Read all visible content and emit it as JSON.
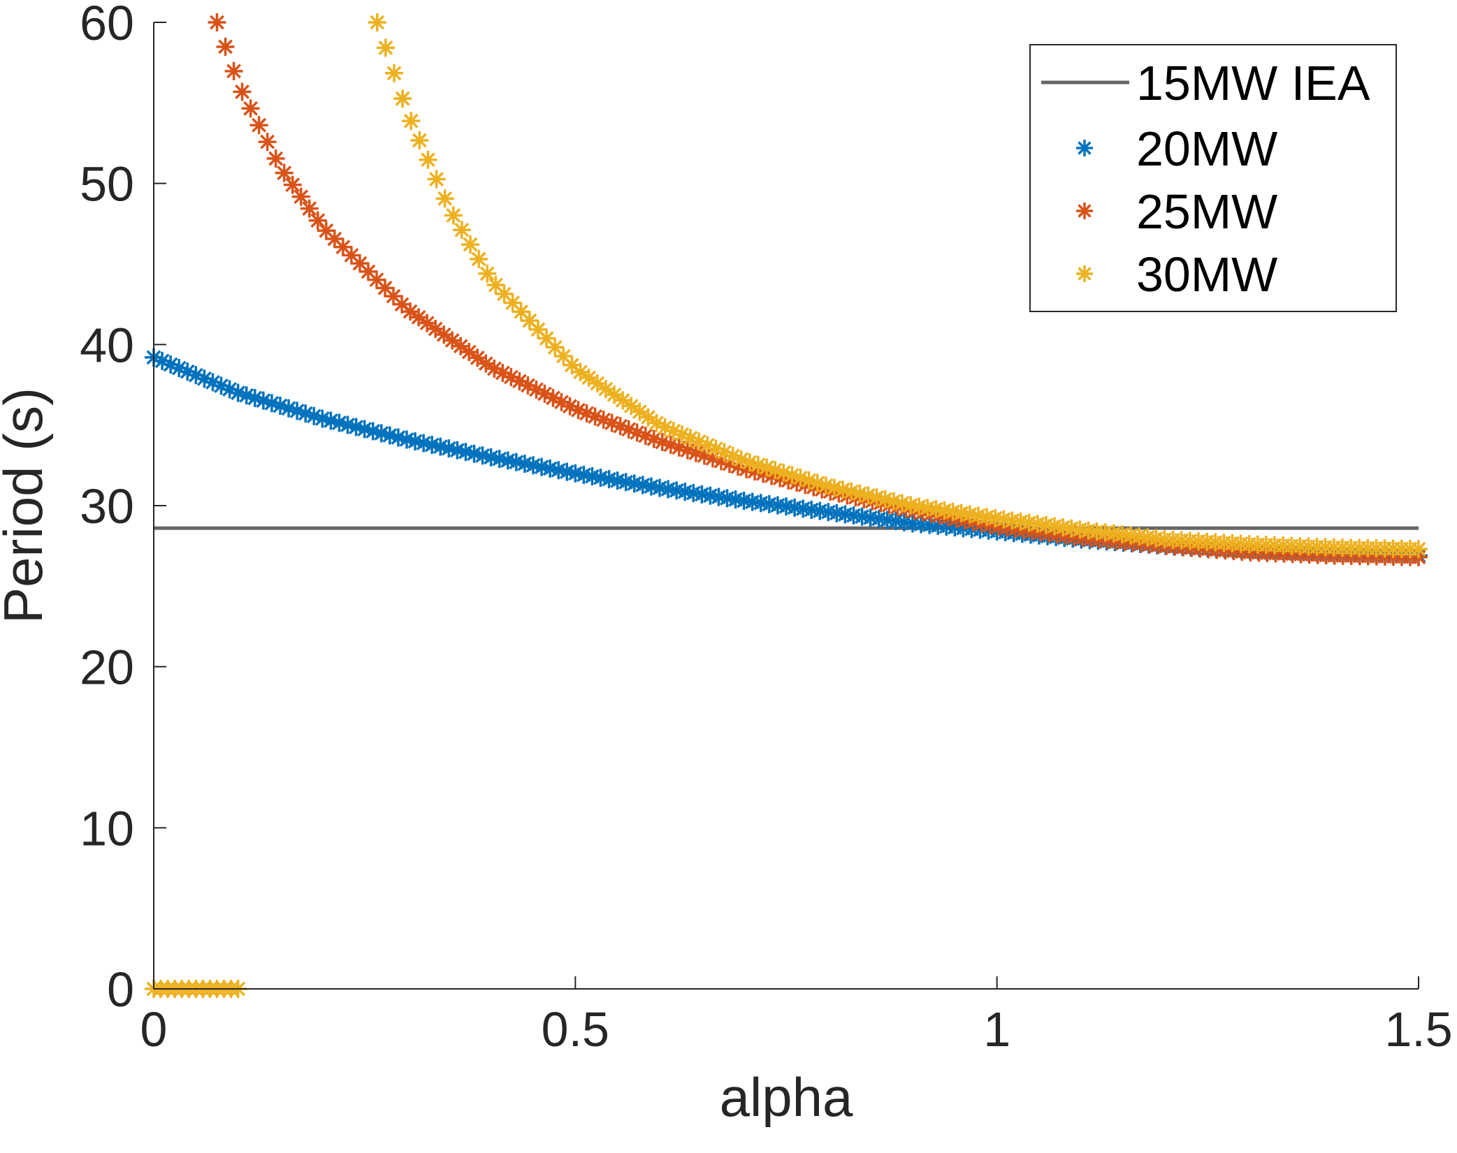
{
  "chart_data": {
    "type": "scatter",
    "title": "",
    "xlabel": "alpha",
    "ylabel": "Period (s)",
    "xlim": [
      0,
      1.5
    ],
    "ylim": [
      0,
      60
    ],
    "xticks": [
      0,
      0.5,
      1,
      1.5
    ],
    "xtick_labels": [
      "0",
      "0.5",
      "1",
      "1.5"
    ],
    "yticks": [
      0,
      10,
      20,
      30,
      40,
      50,
      60
    ],
    "ytick_labels": [
      "0",
      "10",
      "20",
      "30",
      "40",
      "50",
      "60"
    ],
    "grid": false,
    "legend_position": "top-right",
    "reference_line": {
      "name": "15MW IEA",
      "y": 28.6,
      "color": "#666666"
    },
    "series": [
      {
        "name": "20MW",
        "color": "#0072BD",
        "marker": "asterisk",
        "points": [
          [
            0,
            39.2
          ],
          [
            0.1,
            37.0
          ],
          [
            0.2,
            35.4
          ],
          [
            0.3,
            34.1
          ],
          [
            0.4,
            33.0
          ],
          [
            0.5,
            32.0
          ],
          [
            0.6,
            31.1
          ],
          [
            0.7,
            30.3
          ],
          [
            0.8,
            29.6
          ],
          [
            0.9,
            28.9
          ],
          [
            1.0,
            28.4
          ],
          [
            1.1,
            27.9
          ],
          [
            1.2,
            27.5
          ],
          [
            1.3,
            27.2
          ],
          [
            1.4,
            27.0
          ],
          [
            1.5,
            26.9
          ]
        ]
      },
      {
        "name": "25MW",
        "color": "#D95319",
        "marker": "asterisk",
        "points": [
          [
            0.075,
            60.0
          ],
          [
            0.1,
            56.2
          ],
          [
            0.15,
            51.0
          ],
          [
            0.2,
            47.3
          ],
          [
            0.3,
            42.2
          ],
          [
            0.4,
            38.6
          ],
          [
            0.5,
            36.0
          ],
          [
            0.6,
            34.0
          ],
          [
            0.7,
            32.3
          ],
          [
            0.8,
            30.9
          ],
          [
            0.9,
            29.7
          ],
          [
            1.0,
            28.7
          ],
          [
            1.1,
            28.0
          ],
          [
            1.2,
            27.5
          ],
          [
            1.3,
            27.1
          ],
          [
            1.4,
            26.9
          ],
          [
            1.5,
            26.8
          ]
        ]
      },
      {
        "name": "30MW",
        "color": "#EDB120",
        "marker": "asterisk",
        "points": [
          [
            0.265,
            60.0
          ],
          [
            0.3,
            54.5
          ],
          [
            0.35,
            48.5
          ],
          [
            0.4,
            44.0
          ],
          [
            0.5,
            38.5
          ],
          [
            0.6,
            35.0
          ],
          [
            0.7,
            32.8
          ],
          [
            0.8,
            31.2
          ],
          [
            0.9,
            30.0
          ],
          [
            1.0,
            29.2
          ],
          [
            1.1,
            28.5
          ],
          [
            1.2,
            27.9
          ],
          [
            1.3,
            27.6
          ],
          [
            1.4,
            27.4
          ],
          [
            1.5,
            27.3
          ]
        ],
        "zero_segment": [
          [
            0,
            0
          ],
          [
            0.1,
            0
          ]
        ]
      }
    ]
  }
}
